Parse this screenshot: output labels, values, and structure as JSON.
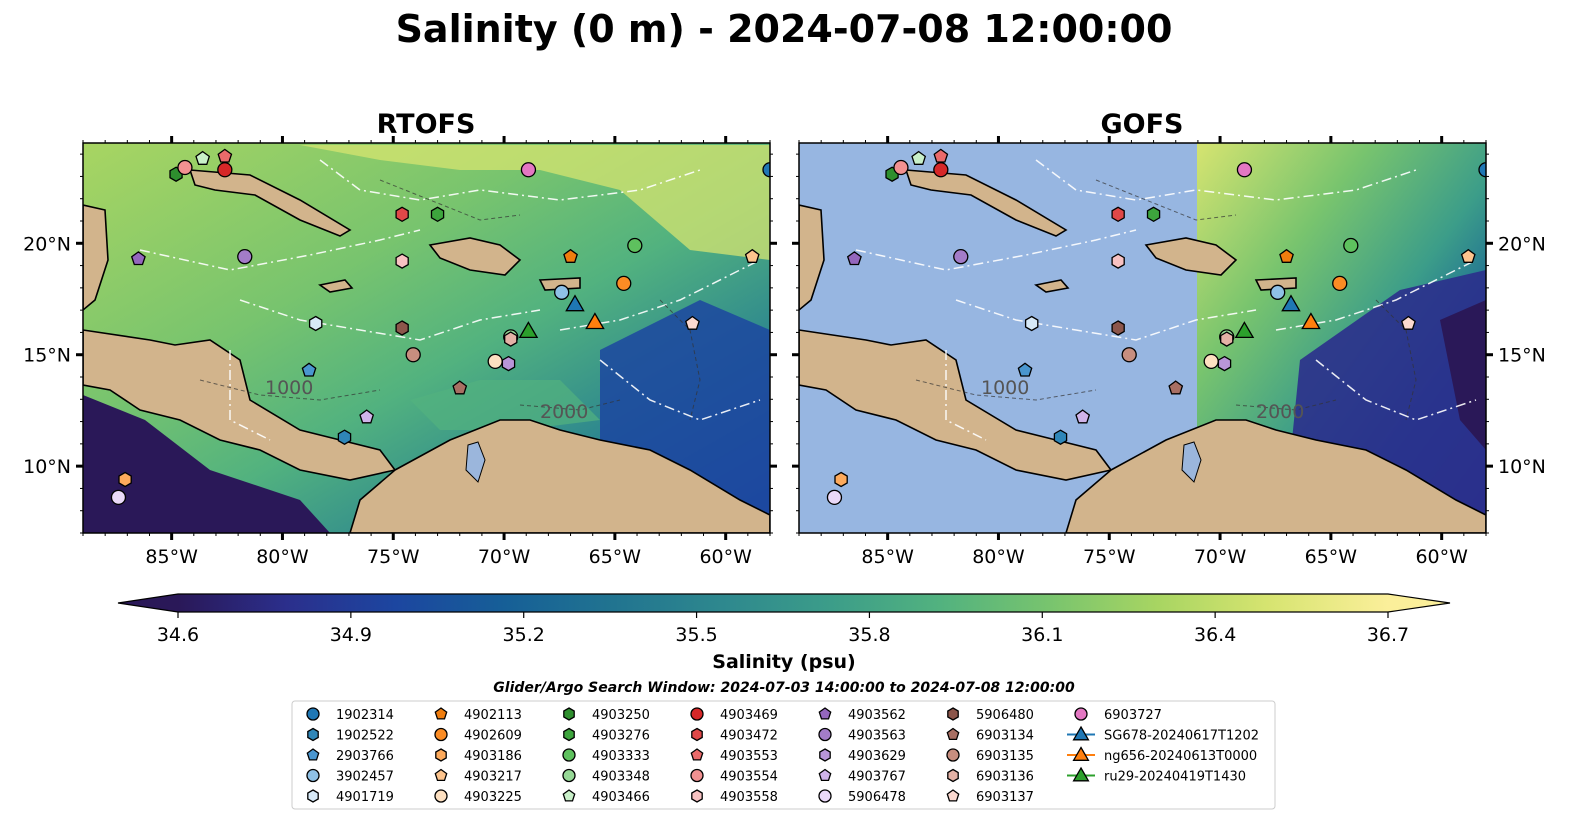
{
  "figure": {
    "title": "Salinity (0 m) - 2024-07-08 12:00:00",
    "search_window": "Glider/Argo Search Window: 2024-07-03 14:00:00 to 2024-07-08 12:00:00"
  },
  "colors": {
    "land": "#d2b48c",
    "gofs_nodata": "#97b6e1",
    "river": "#9bb6dc",
    "colormap": [
      "#2a1858",
      "#2b2f8c",
      "#1c46a0",
      "#165f97",
      "#217490",
      "#2e888e",
      "#3c9d89",
      "#52b27f",
      "#78c46e",
      "#a8d562",
      "#d6e470",
      "#fbef9a"
    ]
  },
  "chart_data": {
    "type": "heatmap",
    "panels": [
      "RTOFS",
      "GOFS"
    ],
    "lon_range": [
      -89,
      -58
    ],
    "lat_range": [
      7,
      24.5
    ],
    "x_ticks": [
      -85,
      -80,
      -75,
      -70,
      -65,
      -60
    ],
    "x_tick_labels": [
      "85°W",
      "80°W",
      "75°W",
      "70°W",
      "65°W",
      "60°W"
    ],
    "y_ticks": [
      10,
      15,
      20
    ],
    "y_tick_labels": [
      "10°N",
      "15°N",
      "20°N"
    ],
    "colorbar": {
      "label": "Salinity (psu)",
      "range": [
        34.6,
        36.7
      ],
      "ticks": [
        34.6,
        34.9,
        35.2,
        35.5,
        35.8,
        36.1,
        36.4,
        36.7
      ],
      "tick_labels": [
        "34.6",
        "34.9",
        "35.2",
        "35.5",
        "35.8",
        "36.1",
        "36.4",
        "36.7"
      ],
      "extend": "both"
    },
    "contour_labels": [
      "1000",
      "2000"
    ],
    "legend": [
      {
        "id": "1902314",
        "marker": "circle",
        "color": "#1f77b4"
      },
      {
        "id": "1902522",
        "marker": "hexagon",
        "color": "#2f86b8"
      },
      {
        "id": "2903766",
        "marker": "pentagon",
        "color": "#4a96cf"
      },
      {
        "id": "3902457",
        "marker": "circle",
        "color": "#8fc1e6"
      },
      {
        "id": "4901719",
        "marker": "hexagon",
        "color": "#d7e9f7"
      },
      {
        "id": "4902113",
        "marker": "pentagon",
        "color": "#f07d0e"
      },
      {
        "id": "4902609",
        "marker": "circle",
        "color": "#fb8c24"
      },
      {
        "id": "4903186",
        "marker": "hexagon",
        "color": "#fdaa5c"
      },
      {
        "id": "4903217",
        "marker": "pentagon",
        "color": "#fdc48d"
      },
      {
        "id": "4903225",
        "marker": "circle",
        "color": "#fde0c1"
      },
      {
        "id": "4903250",
        "marker": "hexagon",
        "color": "#2e8f2e"
      },
      {
        "id": "4903276",
        "marker": "hexagon",
        "color": "#3da53d"
      },
      {
        "id": "4903333",
        "marker": "circle",
        "color": "#5ec15e"
      },
      {
        "id": "4903348",
        "marker": "circle",
        "color": "#96d896"
      },
      {
        "id": "4903466",
        "marker": "pentagon",
        "color": "#c9f0c9"
      },
      {
        "id": "4903469",
        "marker": "circle",
        "color": "#d62728"
      },
      {
        "id": "4903472",
        "marker": "hexagon",
        "color": "#e04848"
      },
      {
        "id": "4903553",
        "marker": "pentagon",
        "color": "#ea6a6a"
      },
      {
        "id": "4903554",
        "marker": "circle",
        "color": "#f19191"
      },
      {
        "id": "4903558",
        "marker": "hexagon",
        "color": "#f8c2c2"
      },
      {
        "id": "4903562",
        "marker": "pentagon",
        "color": "#9467bd"
      },
      {
        "id": "4903563",
        "marker": "circle",
        "color": "#a37cc8"
      },
      {
        "id": "4903629",
        "marker": "hexagon",
        "color": "#b996d8"
      },
      {
        "id": "4903767",
        "marker": "pentagon",
        "color": "#d0b4ea"
      },
      {
        "id": "5906478",
        "marker": "circle",
        "color": "#ead9f8"
      },
      {
        "id": "5906480",
        "marker": "hexagon",
        "color": "#8c564b"
      },
      {
        "id": "6903134",
        "marker": "pentagon",
        "color": "#a86f63"
      },
      {
        "id": "6903135",
        "marker": "circle",
        "color": "#c78e7f"
      },
      {
        "id": "6903136",
        "marker": "hexagon",
        "color": "#e4b2a6"
      },
      {
        "id": "6903137",
        "marker": "pentagon",
        "color": "#fbd9d0"
      },
      {
        "id": "6903727",
        "marker": "circle",
        "color": "#e377c2"
      },
      {
        "id": "SG678-20240617T1202",
        "marker": "triangle",
        "color": "#1f77b4"
      },
      {
        "id": "ng656-20240613T0000",
        "marker": "triangle",
        "color": "#ff7f0e"
      },
      {
        "id": "ru29-20240419T1430",
        "marker": "triangle",
        "color": "#2ca02c"
      }
    ],
    "floats": [
      {
        "id": "1902314",
        "lon": -58.0,
        "lat": 23.3
      },
      {
        "id": "1902522",
        "lon": -77.2,
        "lat": 11.3
      },
      {
        "id": "2903766",
        "lon": -78.8,
        "lat": 14.3
      },
      {
        "id": "3902457",
        "lon": -67.4,
        "lat": 17.8
      },
      {
        "id": "4901719",
        "lon": -78.5,
        "lat": 16.4
      },
      {
        "id": "4902113",
        "lon": -67.0,
        "lat": 19.4
      },
      {
        "id": "4902609",
        "lon": -64.6,
        "lat": 18.2
      },
      {
        "id": "4903186",
        "lon": -87.1,
        "lat": 9.4
      },
      {
        "id": "4903217",
        "lon": -58.8,
        "lat": 19.4
      },
      {
        "id": "4903225",
        "lon": -70.4,
        "lat": 14.7
      },
      {
        "id": "4903250",
        "lon": -84.8,
        "lat": 23.1
      },
      {
        "id": "4903276",
        "lon": -73.0,
        "lat": 21.3
      },
      {
        "id": "4903333",
        "lon": -64.1,
        "lat": 19.9
      },
      {
        "id": "4903348",
        "lon": -69.7,
        "lat": 15.8
      },
      {
        "id": "4903466",
        "lon": -83.6,
        "lat": 23.8
      },
      {
        "id": "4903469",
        "lon": -82.6,
        "lat": 23.3
      },
      {
        "id": "4903472",
        "lon": -74.6,
        "lat": 21.3
      },
      {
        "id": "4903553",
        "lon": -82.6,
        "lat": 23.9
      },
      {
        "id": "4903554",
        "lon": -84.4,
        "lat": 23.4
      },
      {
        "id": "4903558",
        "lon": -74.6,
        "lat": 19.2
      },
      {
        "id": "4903562",
        "lon": -86.5,
        "lat": 19.3
      },
      {
        "id": "4903563",
        "lon": -81.7,
        "lat": 19.4
      },
      {
        "id": "4903629",
        "lon": -69.8,
        "lat": 14.6
      },
      {
        "id": "4903767",
        "lon": -76.2,
        "lat": 12.2
      },
      {
        "id": "5906478",
        "lon": -87.4,
        "lat": 8.6
      },
      {
        "id": "5906480",
        "lon": -74.6,
        "lat": 16.2
      },
      {
        "id": "6903134",
        "lon": -72.0,
        "lat": 13.5
      },
      {
        "id": "6903135",
        "lon": -74.1,
        "lat": 15.0
      },
      {
        "id": "6903136",
        "lon": -69.7,
        "lat": 15.7
      },
      {
        "id": "6903137",
        "lon": -61.5,
        "lat": 16.4
      },
      {
        "id": "6903727",
        "lon": -68.9,
        "lat": 23.3
      }
    ],
    "gliders": [
      {
        "id": "SG678-20240617T1202",
        "lon": -66.8,
        "lat": 17.2
      },
      {
        "id": "ng656-20240613T0000",
        "lon": -65.9,
        "lat": 16.4
      },
      {
        "id": "ru29-20240419T1430",
        "lon": -68.9,
        "lat": 16.0
      }
    ]
  }
}
